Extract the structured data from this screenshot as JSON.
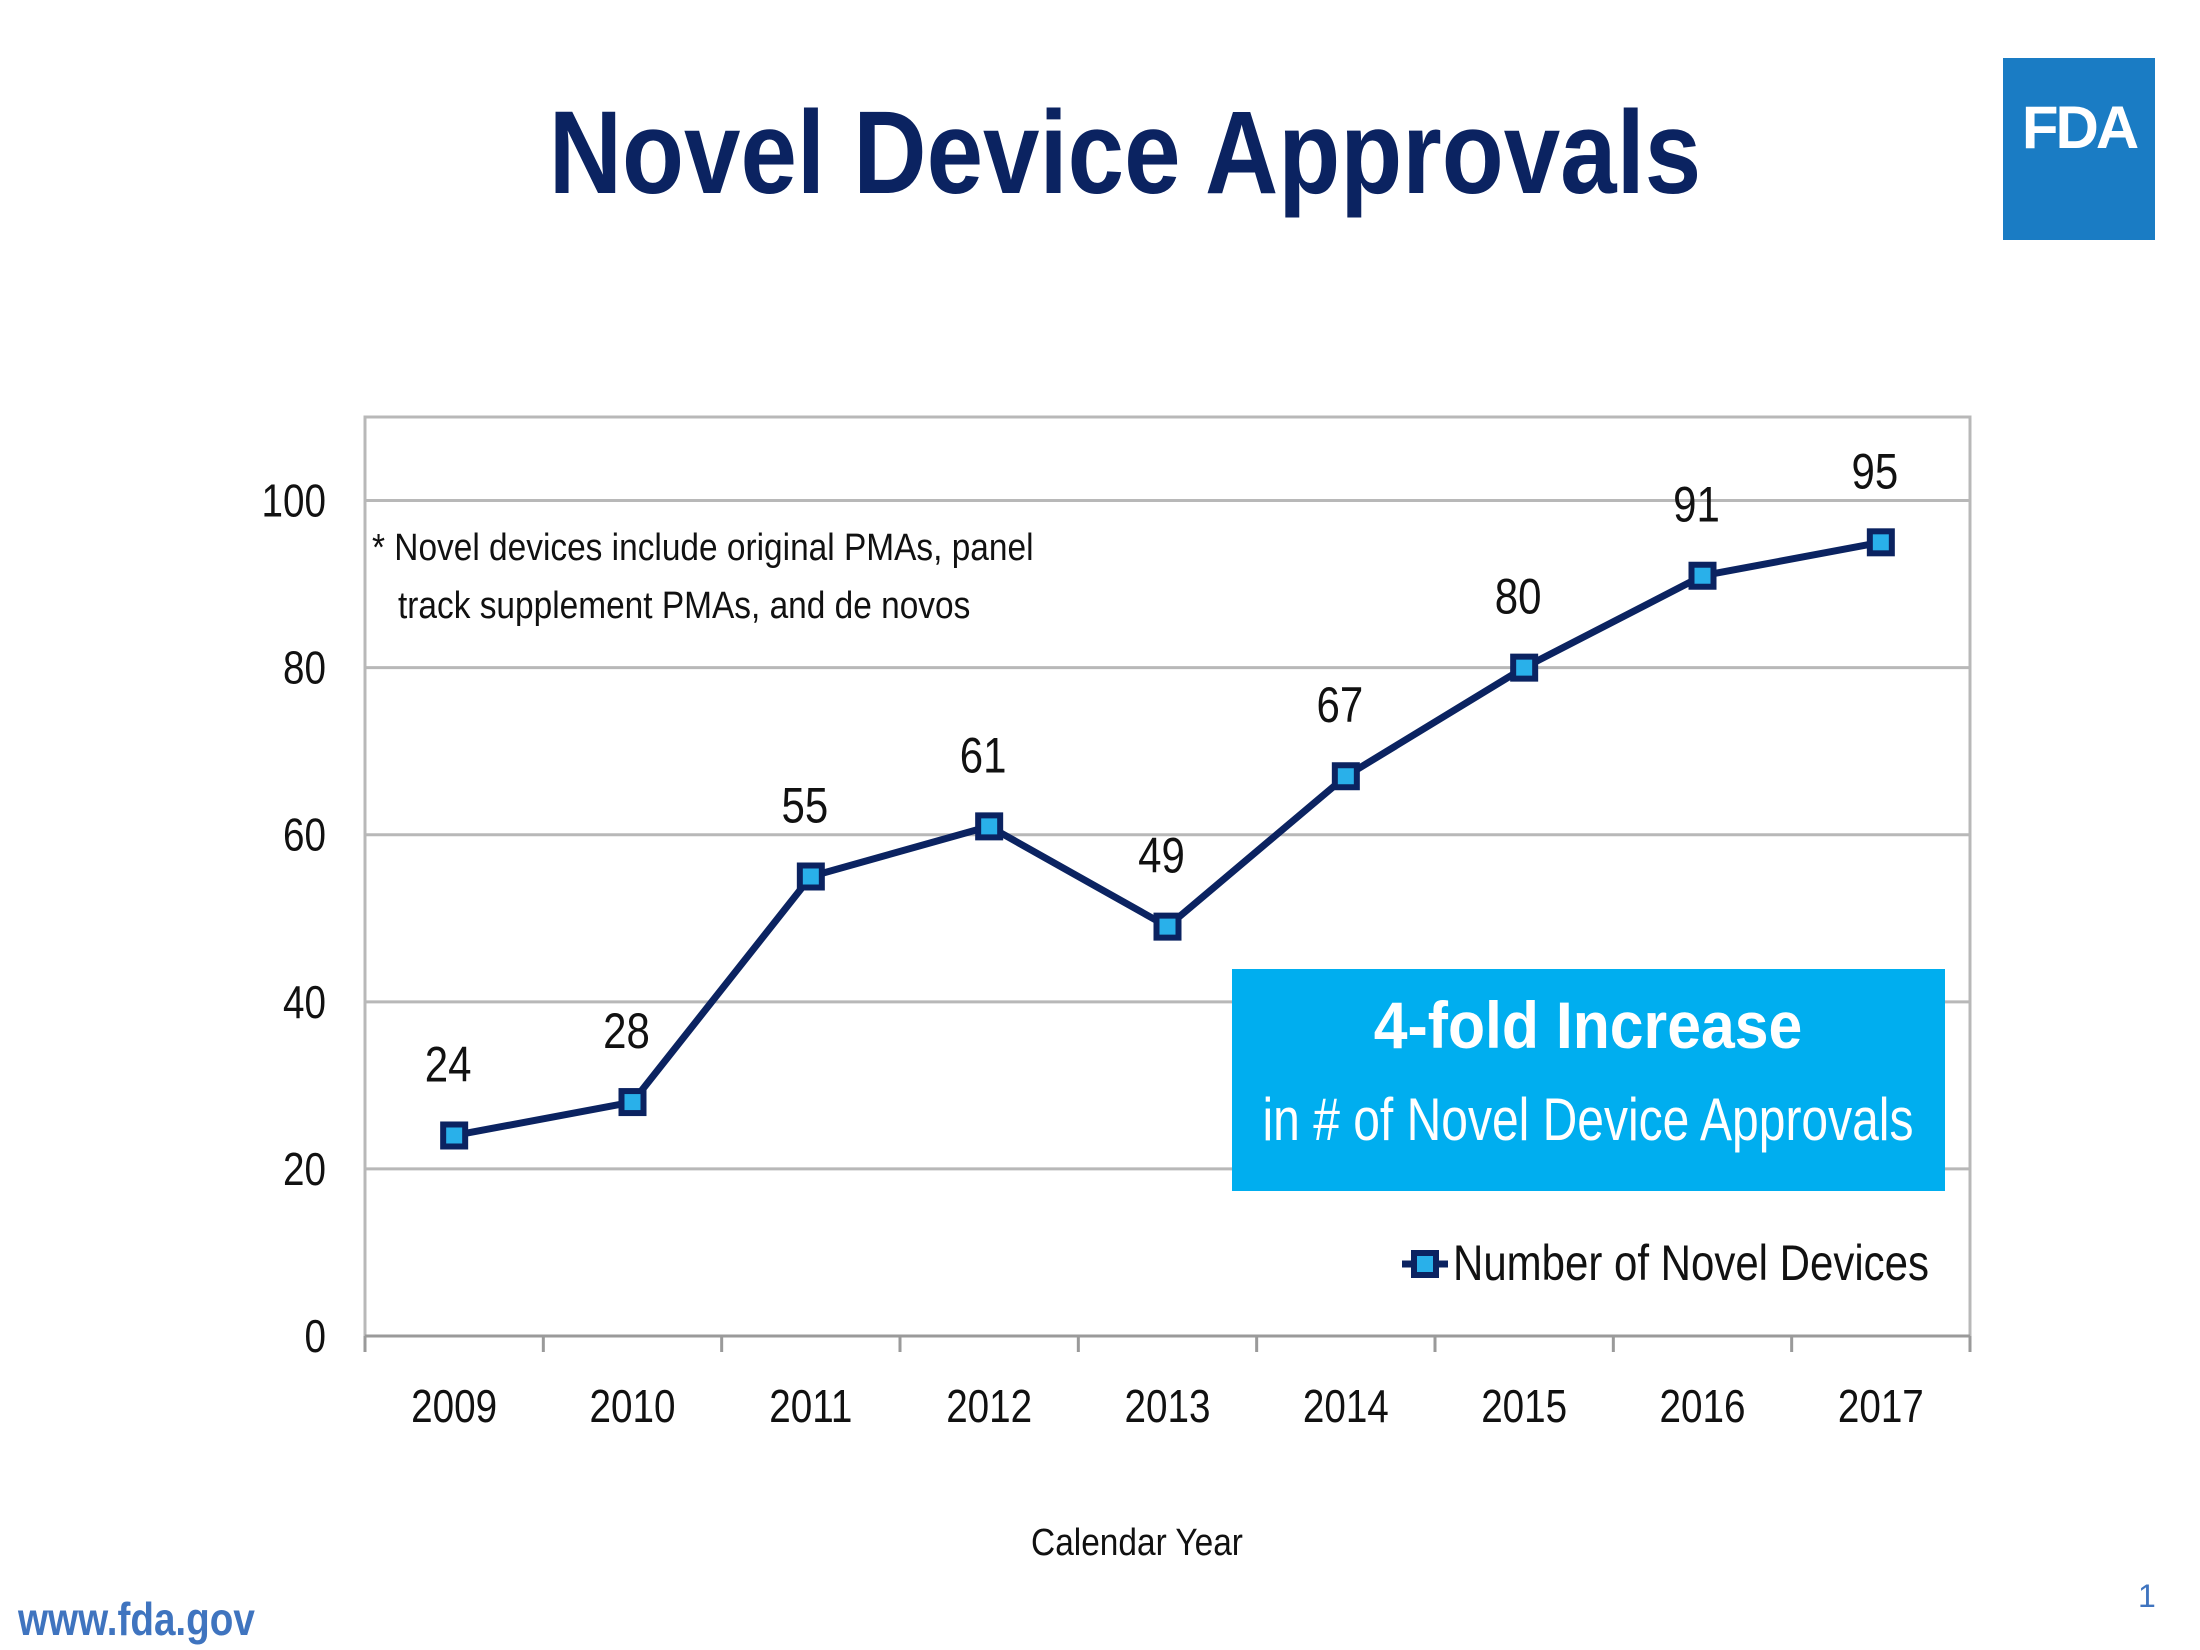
{
  "page": {
    "title": "Novel Device Approvals",
    "logo_text": "FDA",
    "footer_url": "www.fda.gov",
    "page_number": "1"
  },
  "colors": {
    "title": "#0b2361",
    "logo_bg": "#1a7cc4",
    "line": "#0b2361",
    "marker_fill": "#29b0ea",
    "callout_bg": "#00aeef",
    "grid": "#b8b8b8",
    "footer": "#3f74bf"
  },
  "chart_data": {
    "type": "line",
    "categories": [
      "2009",
      "2010",
      "2011",
      "2012",
      "2013",
      "2014",
      "2015",
      "2016",
      "2017"
    ],
    "series": [
      {
        "name": "Number of Novel Devices",
        "values": [
          24,
          28,
          55,
          61,
          49,
          67,
          80,
          91,
          95
        ]
      }
    ],
    "data_labels": [
      "24",
      "28",
      "55",
      "61",
      "49",
      "67",
      "80",
      "91",
      "95"
    ],
    "ylim": [
      0,
      110
    ],
    "yticks": [
      0,
      20,
      40,
      60,
      80,
      100
    ],
    "ytick_labels": [
      "0",
      "20",
      "40",
      "60",
      "80",
      "100"
    ],
    "xlabel": "Calendar Year",
    "ylabel": "",
    "grid": true,
    "legend_position": "bottom-right",
    "note_lines": [
      "* Novel devices include original PMAs, panel",
      "track supplement PMAs, and de novos"
    ],
    "callout": {
      "line1": "4-fold Increase",
      "line2": "in # of Novel Device Approvals"
    }
  }
}
